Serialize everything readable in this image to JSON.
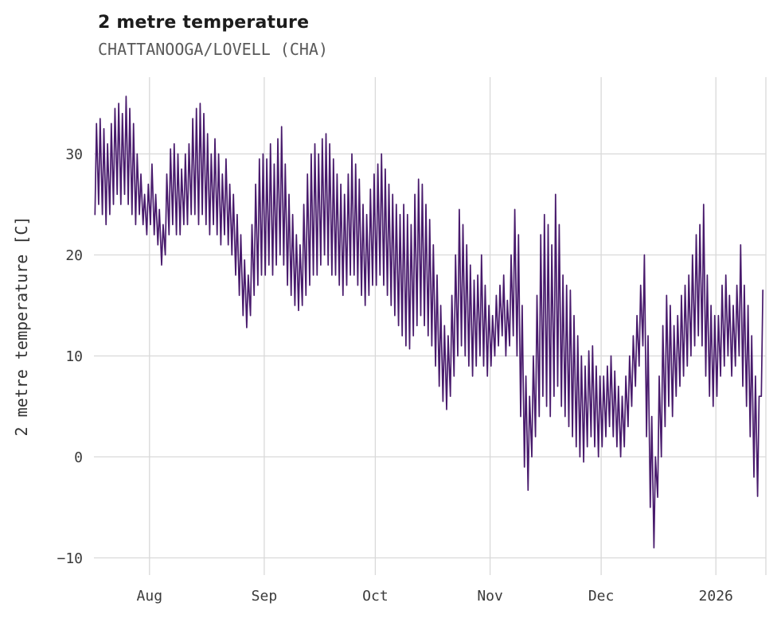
{
  "header": {
    "title": "2 metre temperature",
    "subtitle": "CHATTANOOGA/LOVELL (CHA)"
  },
  "chart_data": {
    "type": "line",
    "title": "2 metre temperature",
    "subtitle": "CHATTANOOGA/LOVELL (CHA)",
    "xlabel": "",
    "ylabel": "2 metre temperature [C]",
    "line_color": "#481a6c",
    "grid_color": "#d9d9d9",
    "grid": true,
    "legend": false,
    "x_tick_labels": [
      "Aug",
      "Sep",
      "Oct",
      "Nov",
      "Dec",
      "2026"
    ],
    "x_tick_days": [
      15,
      46,
      76,
      107,
      137,
      168
    ],
    "y_ticks": [
      -10,
      0,
      10,
      20,
      30
    ],
    "xlim": [
      0,
      181.5
    ],
    "ylim": [
      -11.7,
      37.6
    ],
    "x_unit": "days (index 0 = start of plotted record, monthly ticks as labeled)",
    "series": [
      {
        "name": "2 metre temperature",
        "daily_low": [
          24,
          25,
          24,
          23,
          24,
          25,
          26,
          25,
          26,
          25,
          24,
          23,
          24,
          23,
          22,
          23,
          22,
          21,
          19,
          20,
          22,
          23,
          22,
          22,
          23,
          23,
          24,
          24,
          23,
          24,
          23,
          22,
          23,
          22,
          21,
          22,
          21,
          20,
          18,
          16,
          14,
          12.8,
          14,
          16,
          17,
          18,
          18,
          19,
          18,
          19,
          20,
          19,
          17,
          16,
          15,
          14.5,
          15,
          16,
          17,
          18,
          18,
          19,
          20,
          19,
          18,
          18,
          17,
          16,
          17,
          18,
          18,
          17,
          16,
          15,
          16,
          17,
          17,
          18,
          17,
          16,
          15,
          14,
          13,
          12,
          11,
          10.7,
          12,
          13,
          14,
          13,
          12,
          11,
          9,
          7,
          5.5,
          4.7,
          6,
          8,
          10,
          11,
          10,
          9,
          8,
          9,
          10,
          9,
          8,
          9,
          10,
          11,
          12,
          10,
          11,
          12,
          10,
          4,
          -1,
          -3.3,
          0,
          2,
          4,
          6,
          5,
          4,
          6,
          7,
          5,
          4,
          3,
          2,
          1,
          0,
          -0.5,
          1,
          2,
          1,
          0,
          1,
          2,
          3,
          2,
          1,
          0,
          1,
          3,
          5,
          7,
          9,
          11,
          2,
          -5,
          -9,
          -4,
          0,
          3,
          5,
          4,
          6,
          7,
          8,
          9,
          10,
          11,
          12,
          11,
          8,
          6,
          5,
          6,
          8,
          9,
          10,
          8,
          9,
          10,
          7,
          5,
          2,
          -2,
          -3.9,
          6
        ],
        "daily_high": [
          33,
          33.5,
          32.5,
          31,
          33,
          34.5,
          35,
          34,
          35.7,
          34.5,
          33,
          30,
          28,
          26,
          27,
          29,
          26,
          24.5,
          23,
          28,
          30.5,
          31,
          30,
          28.5,
          30,
          31,
          33.5,
          34.5,
          35,
          34,
          32,
          30,
          31.5,
          30,
          28,
          29.5,
          27,
          26,
          24,
          22,
          19.5,
          18,
          23,
          27,
          29.5,
          30,
          29.5,
          31,
          29,
          31.5,
          32.7,
          29,
          26,
          24,
          22,
          21,
          25,
          28,
          30,
          31,
          30,
          31.5,
          32,
          31,
          29.5,
          28,
          27,
          26,
          28,
          30,
          29,
          27.5,
          25,
          24,
          26.5,
          28,
          29,
          30,
          28.5,
          27,
          26,
          25,
          24,
          25,
          24,
          23,
          26,
          27.5,
          27,
          25,
          23.5,
          21,
          18,
          15,
          13,
          12,
          16,
          20,
          24.5,
          23,
          21,
          19,
          17.5,
          18,
          20,
          17,
          15,
          14,
          16,
          17,
          18,
          15.5,
          20,
          24.5,
          22,
          15,
          8,
          6,
          10,
          16,
          22,
          24,
          23,
          21,
          26,
          23,
          18,
          17,
          16.5,
          14,
          12,
          10,
          9,
          10.5,
          11,
          9,
          8,
          8,
          9,
          10,
          8.5,
          7,
          6,
          8,
          10,
          12,
          14,
          17,
          20,
          12,
          4,
          0,
          8,
          13,
          16,
          15,
          13,
          14,
          16,
          17,
          18,
          20,
          22,
          23,
          25,
          18,
          15,
          14,
          14,
          17,
          18,
          16,
          15,
          17,
          21,
          17,
          15,
          12,
          8,
          6,
          16.5
        ]
      }
    ]
  }
}
